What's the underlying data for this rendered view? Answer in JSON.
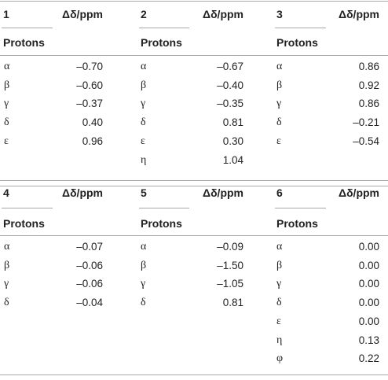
{
  "table": {
    "delta_header": "Δδ/ppm",
    "protons_header": "Protons",
    "compounds": [
      {
        "label": "1",
        "rows": [
          {
            "proton": "α",
            "value": "–0.70"
          },
          {
            "proton": "β",
            "value": "–0.60"
          },
          {
            "proton": "γ",
            "value": "–0.37"
          },
          {
            "proton": "δ",
            "value": "0.40"
          },
          {
            "proton": "ε",
            "value": "0.96"
          }
        ]
      },
      {
        "label": "2",
        "rows": [
          {
            "proton": "α",
            "value": "–0.67"
          },
          {
            "proton": "β",
            "value": "–0.40"
          },
          {
            "proton": "γ",
            "value": "–0.35"
          },
          {
            "proton": "δ",
            "value": "0.81"
          },
          {
            "proton": "ε",
            "value": "0.30"
          },
          {
            "proton": "η",
            "value": "1.04"
          }
        ]
      },
      {
        "label": "3",
        "rows": [
          {
            "proton": "α",
            "value": "0.86"
          },
          {
            "proton": "β",
            "value": "0.92"
          },
          {
            "proton": "γ",
            "value": "0.86"
          },
          {
            "proton": "δ",
            "value": "–0.21"
          },
          {
            "proton": "ε",
            "value": "–0.54"
          }
        ]
      },
      {
        "label": "4",
        "rows": [
          {
            "proton": "α",
            "value": "–0.07"
          },
          {
            "proton": "β",
            "value": "–0.06"
          },
          {
            "proton": "γ",
            "value": "–0.06"
          },
          {
            "proton": "δ",
            "value": "–0.04"
          }
        ]
      },
      {
        "label": "5",
        "rows": [
          {
            "proton": "α",
            "value": "–0.09"
          },
          {
            "proton": "β",
            "value": "–1.50"
          },
          {
            "proton": "γ",
            "value": "–1.05"
          },
          {
            "proton": "δ",
            "value": "0.81"
          }
        ]
      },
      {
        "label": "6",
        "rows": [
          {
            "proton": "α",
            "value": "0.00"
          },
          {
            "proton": "β",
            "value": "0.00"
          },
          {
            "proton": "γ",
            "value": "0.00"
          },
          {
            "proton": "δ",
            "value": "0.00"
          },
          {
            "proton": "ε",
            "value": "0.00"
          },
          {
            "proton": "η",
            "value": "0.13"
          },
          {
            "proton": "φ",
            "value": "0.22"
          }
        ]
      }
    ]
  }
}
